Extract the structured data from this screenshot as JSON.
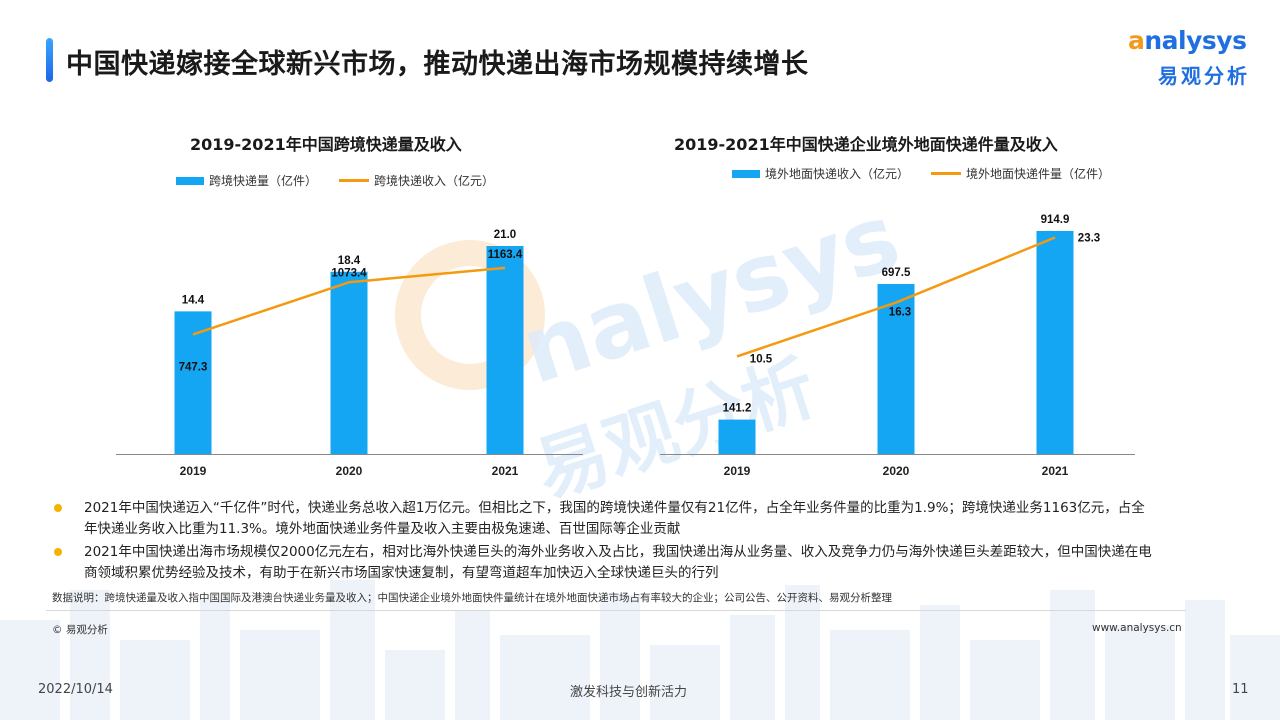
{
  "header": {
    "title": "中国快递嫁接全球新兴市场，推动快递出海市场规模持续增长"
  },
  "logo": {
    "text_accent": "a",
    "text_rest": "nalysys",
    "cn": "易观分析"
  },
  "watermark": {
    "text": "nalysys",
    "cn": "易观分析"
  },
  "colors": {
    "bar": "#15a6f3",
    "line": "#f49a10",
    "accent_bar": "#1e66e8",
    "bullet": "#f5b300"
  },
  "chart_data": [
    {
      "type": "bar",
      "title": "2019-2021年中国跨境快递量及收入",
      "categories": [
        "2019",
        "2020",
        "2021"
      ],
      "series": [
        {
          "name": "跨境快递量（亿件）",
          "kind": "bar",
          "values": [
            14.4,
            18.4,
            21.0
          ],
          "labels": [
            "14.4",
            "18.4",
            "21.0"
          ]
        },
        {
          "name": "跨境快递收入（亿元）",
          "kind": "line",
          "values": [
            747.3,
            1073.4,
            1163.4
          ],
          "labels": [
            "747.3",
            "1073.4",
            "1163.4"
          ]
        }
      ],
      "bar_ylim": [
        0,
        21.0
      ],
      "line_ylim": [
        0,
        1300
      ],
      "legend_position": "top-left",
      "grid": false
    },
    {
      "type": "bar",
      "title": "2019-2021年中国快递企业境外地面快递件量及收入",
      "categories": [
        "2019",
        "2020",
        "2021"
      ],
      "series": [
        {
          "name": "境外地面快递收入（亿元）",
          "kind": "bar",
          "values": [
            141.2,
            697.5,
            914.9
          ],
          "labels": [
            "141.2",
            "697.5",
            "914.9"
          ]
        },
        {
          "name": "境外地面快递件量（亿件）",
          "kind": "line",
          "values": [
            10.5,
            16.3,
            23.3
          ],
          "labels": [
            "10.5",
            "16.3",
            "23.3"
          ]
        }
      ],
      "bar_ylim": [
        0,
        914.9
      ],
      "line_ylim": [
        0,
        24
      ],
      "legend_position": "top-left",
      "grid": false
    }
  ],
  "bullets": [
    "2021年中国快递迈入“千亿件”时代，快递业务总收入超1万亿元。但相比之下，我国的跨境快递件量仅有21亿件，占全年业务件量的比重为1.9%；跨境快递业务1163亿元，占全年快递业务收入比重为11.3%。境外地面快递业务件量及收入主要由极兔速递、百世国际等企业贡献",
    "2021年中国快递出海市场规模仅2000亿元左右，相对比海外快递巨头的海外业务收入及占比，我国快递出海从业务量、收入及竞争力仍与海外快递巨头差距较大，但中国快递在电商领域积累优势经验及技术，有助于在新兴市场国家快速复制，有望弯道超车加快迈入全球快递巨头的行列"
  ],
  "footer": {
    "note": "数据说明：跨境快递量及收入指中国国际及港澳台快递业务量及收入；中国快递企业境外地面快件量统计在境外地面快递市场占有率较大的企业；公司公告、公开资料、易观分析整理",
    "copyright": "© 易观分析",
    "website": "www.analysys.cn",
    "date": "2022/10/14",
    "slogan": "激发科技与创新活力",
    "page": "11"
  }
}
